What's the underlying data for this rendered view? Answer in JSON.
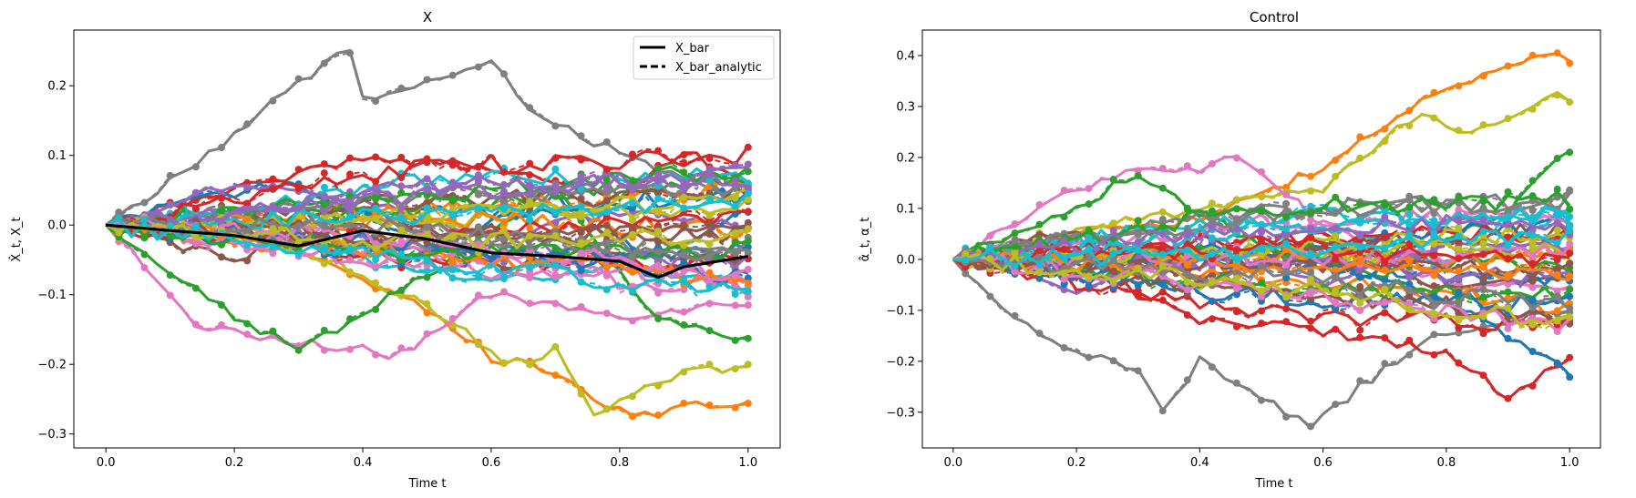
{
  "chart_data": [
    {
      "type": "line",
      "title": "X",
      "xlabel": "Time t",
      "ylabel": "X̂_t, X_t",
      "xlim": [
        -0.05,
        1.05
      ],
      "ylim": [
        -0.32,
        0.28
      ],
      "x_ticks": [
        0.0,
        0.2,
        0.4,
        0.6,
        0.8,
        1.0
      ],
      "x_tick_labels": [
        "0.0",
        "0.2",
        "0.4",
        "0.6",
        "0.8",
        "1.0"
      ],
      "y_ticks": [
        -0.3,
        -0.2,
        -0.1,
        0.0,
        0.1,
        0.2
      ],
      "y_tick_labels": [
        "−0.3",
        "−0.2",
        "−0.1",
        "0.0",
        "0.1",
        "0.2"
      ],
      "grid": false,
      "legend": {
        "position": "top-right",
        "entries": [
          {
            "label": "X_bar",
            "style": "solid",
            "color": "#000000"
          },
          {
            "label": "X_bar_analytic",
            "style": "dashed",
            "color": "#000000"
          }
        ]
      },
      "mean_series": {
        "x": [
          0.0,
          0.1,
          0.2,
          0.3,
          0.4,
          0.5,
          0.6,
          0.7,
          0.8,
          0.86,
          0.9,
          1.0
        ],
        "X_bar": [
          0.0,
          -0.008,
          -0.015,
          -0.03,
          -0.008,
          -0.02,
          -0.04,
          -0.045,
          -0.052,
          -0.075,
          -0.06,
          -0.045
        ],
        "X_bar_analytic": [
          0.0,
          -0.008,
          -0.015,
          -0.03,
          -0.008,
          -0.02,
          -0.04,
          -0.045,
          -0.052,
          -0.075,
          -0.06,
          -0.045
        ]
      },
      "paths": [
        {
          "color": "#7f7f7f",
          "end": 0.03,
          "shape": [
            [
              0.2,
              0.13
            ],
            [
              0.35,
              0.24
            ],
            [
              0.38,
              0.25
            ],
            [
              0.4,
              0.18
            ],
            [
              0.6,
              0.23
            ],
            [
              0.66,
              0.17
            ],
            [
              0.8,
              0.1
            ],
            [
              1.0,
              0.03
            ]
          ]
        },
        {
          "color": "#ff7f0e",
          "end": -0.26,
          "shape": [
            [
              0.3,
              -0.04
            ],
            [
              0.5,
              -0.12
            ],
            [
              0.6,
              -0.19
            ],
            [
              0.7,
              -0.21
            ],
            [
              0.82,
              -0.28
            ],
            [
              0.9,
              -0.26
            ],
            [
              1.0,
              -0.26
            ]
          ]
        },
        {
          "color": "#bcbd22",
          "end": -0.2,
          "shape": [
            [
              0.3,
              -0.03
            ],
            [
              0.55,
              -0.14
            ],
            [
              0.62,
              -0.2
            ],
            [
              0.7,
              -0.18
            ],
            [
              0.76,
              -0.27
            ],
            [
              0.86,
              -0.22
            ],
            [
              1.0,
              -0.2
            ]
          ]
        },
        {
          "color": "#e377c2",
          "end": -0.11,
          "shape": [
            [
              0.15,
              -0.15
            ],
            [
              0.4,
              -0.18
            ],
            [
              0.45,
              -0.19
            ],
            [
              0.6,
              -0.1
            ],
            [
              0.8,
              -0.13
            ],
            [
              1.0,
              -0.11
            ]
          ]
        },
        {
          "color": "#2ca02c",
          "end": -0.16,
          "shape": [
            [
              0.2,
              -0.13
            ],
            [
              0.3,
              -0.18
            ],
            [
              0.5,
              -0.07
            ],
            [
              0.7,
              0.05
            ],
            [
              0.86,
              -0.14
            ],
            [
              1.0,
              -0.16
            ]
          ]
        },
        {
          "color": "#d62728",
          "end": 0.05,
          "shape": [
            [
              0.2,
              0.05
            ],
            [
              0.4,
              0.1
            ],
            [
              0.6,
              0.08
            ],
            [
              0.8,
              0.04
            ],
            [
              0.9,
              0.11
            ],
            [
              1.0,
              0.05
            ]
          ]
        },
        {
          "color": "#1f77b4",
          "end": 0.02,
          "shape": [
            [
              0.15,
              0.04
            ],
            [
              0.3,
              0.06
            ],
            [
              0.5,
              -0.03
            ],
            [
              0.7,
              0.04
            ],
            [
              0.85,
              -0.05
            ],
            [
              1.0,
              0.02
            ]
          ]
        },
        {
          "color": "#17becf",
          "end": -0.08,
          "shape": [
            [
              0.2,
              0.02
            ],
            [
              0.4,
              -0.05
            ],
            [
              0.6,
              -0.08
            ],
            [
              0.8,
              -0.06
            ],
            [
              1.0,
              -0.08
            ]
          ]
        },
        {
          "color": "#9467bd",
          "end": 0.0,
          "shape": [
            [
              0.2,
              0.06
            ],
            [
              0.4,
              0.04
            ],
            [
              0.6,
              -0.02
            ],
            [
              0.8,
              0.02
            ],
            [
              1.0,
              0.0
            ]
          ]
        },
        {
          "color": "#8c564b",
          "end": -0.05,
          "shape": [
            [
              0.2,
              -0.05
            ],
            [
              0.4,
              0.03
            ],
            [
              0.6,
              -0.06
            ],
            [
              0.8,
              -0.04
            ],
            [
              1.0,
              -0.05
            ]
          ]
        }
      ],
      "plotted_path_count": 40
    },
    {
      "type": "line",
      "title": "Control",
      "xlabel": "Time t",
      "ylabel": "α̂_t, α_t",
      "xlim": [
        -0.05,
        1.05
      ],
      "ylim": [
        -0.37,
        0.45
      ],
      "x_ticks": [
        0.0,
        0.2,
        0.4,
        0.6,
        0.8,
        1.0
      ],
      "x_tick_labels": [
        "0.0",
        "0.2",
        "0.4",
        "0.6",
        "0.8",
        "1.0"
      ],
      "y_ticks": [
        -0.3,
        -0.2,
        -0.1,
        0.0,
        0.1,
        0.2,
        0.3,
        0.4
      ],
      "y_tick_labels": [
        "−0.3",
        "−0.2",
        "−0.1",
        "0.0",
        "0.1",
        "0.2",
        "0.3",
        "0.4"
      ],
      "grid": false,
      "paths": [
        {
          "color": "#7f7f7f",
          "end": -0.1,
          "shape": [
            [
              0.1,
              -0.12
            ],
            [
              0.2,
              -0.18
            ],
            [
              0.3,
              -0.22
            ],
            [
              0.34,
              -0.3
            ],
            [
              0.4,
              -0.2
            ],
            [
              0.58,
              -0.33
            ],
            [
              0.66,
              -0.25
            ],
            [
              0.8,
              -0.14
            ],
            [
              1.0,
              -0.1
            ]
          ]
        },
        {
          "color": "#ff7f0e",
          "end": 0.38,
          "shape": [
            [
              0.2,
              0.05
            ],
            [
              0.4,
              0.08
            ],
            [
              0.6,
              0.18
            ],
            [
              0.72,
              0.28
            ],
            [
              0.8,
              0.33
            ],
            [
              0.98,
              0.41
            ],
            [
              1.0,
              0.38
            ]
          ]
        },
        {
          "color": "#bcbd22",
          "end": 0.3,
          "shape": [
            [
              0.3,
              0.08
            ],
            [
              0.6,
              0.14
            ],
            [
              0.75,
              0.28
            ],
            [
              0.85,
              0.25
            ],
            [
              0.98,
              0.32
            ],
            [
              1.0,
              0.3
            ]
          ]
        },
        {
          "color": "#e377c2",
          "end": -0.05,
          "shape": [
            [
              0.2,
              0.14
            ],
            [
              0.3,
              0.18
            ],
            [
              0.4,
              0.17
            ],
            [
              0.46,
              0.2
            ],
            [
              0.6,
              0.07
            ],
            [
              0.8,
              -0.05
            ],
            [
              1.0,
              -0.05
            ]
          ]
        },
        {
          "color": "#2ca02c",
          "end": 0.22,
          "shape": [
            [
              0.2,
              0.1
            ],
            [
              0.3,
              0.17
            ],
            [
              0.5,
              0.02
            ],
            [
              0.7,
              -0.03
            ],
            [
              0.9,
              0.1
            ],
            [
              1.0,
              0.22
            ]
          ]
        },
        {
          "color": "#d62728",
          "end": -0.19,
          "shape": [
            [
              0.2,
              -0.02
            ],
            [
              0.4,
              -0.12
            ],
            [
              0.6,
              -0.14
            ],
            [
              0.8,
              -0.18
            ],
            [
              0.9,
              -0.27
            ],
            [
              1.0,
              -0.19
            ]
          ]
        },
        {
          "color": "#1f77b4",
          "end": -0.22,
          "shape": [
            [
              0.2,
              -0.03
            ],
            [
              0.4,
              0.03
            ],
            [
              0.6,
              0.0
            ],
            [
              0.8,
              -0.08
            ],
            [
              1.0,
              -0.22
            ]
          ]
        },
        {
          "color": "#17becf",
          "end": 0.09,
          "shape": [
            [
              0.2,
              0.04
            ],
            [
              0.4,
              -0.02
            ],
            [
              0.6,
              0.07
            ],
            [
              0.8,
              -0.01
            ],
            [
              1.0,
              0.09
            ]
          ]
        },
        {
          "color": "#9467bd",
          "end": 0.02,
          "shape": [
            [
              0.2,
              -0.06
            ],
            [
              0.4,
              0.05
            ],
            [
              0.6,
              -0.05
            ],
            [
              0.8,
              0.03
            ],
            [
              1.0,
              0.02
            ]
          ]
        },
        {
          "color": "#8c564b",
          "end": -0.03,
          "shape": [
            [
              0.2,
              0.06
            ],
            [
              0.4,
              -0.04
            ],
            [
              0.6,
              0.04
            ],
            [
              0.8,
              -0.06
            ],
            [
              1.0,
              -0.03
            ]
          ]
        }
      ],
      "plotted_path_count": 40
    }
  ]
}
